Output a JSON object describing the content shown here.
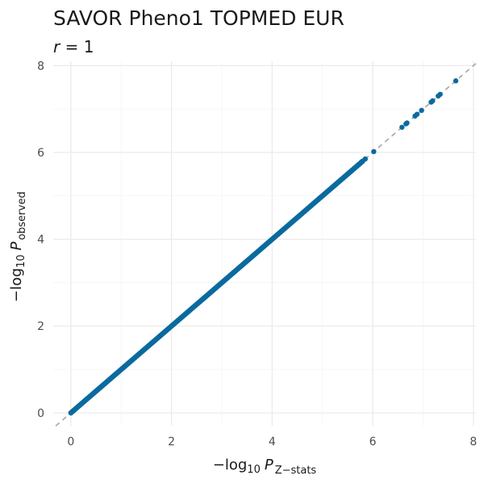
{
  "chart_data": {
    "type": "scatter",
    "title": "SAVOR Pheno1 TOPMED EUR",
    "subtitle": {
      "var": "r",
      "rest": " = 1"
    },
    "xlabel": {
      "prefix": "−log",
      "base": "10",
      "var": "P",
      "sub": "Z−stats"
    },
    "ylabel": {
      "prefix": "−log",
      "base": "10",
      "var": "P",
      "sub": "observed"
    },
    "xlim": [
      -0.35,
      8.05
    ],
    "ylim": [
      -0.3,
      8.1
    ],
    "xticks": [
      "0",
      "2",
      "4",
      "6",
      "8"
    ],
    "yticks": [
      "0",
      "2",
      "4",
      "6",
      "8"
    ],
    "grid": true,
    "reference_line": {
      "slope": 1,
      "intercept": 0,
      "style": "dashed",
      "color": "#a6a6a6"
    },
    "point_color": "#0a6a9e",
    "dense_range": [
      0,
      5.8
    ],
    "points": [
      [
        5.85,
        5.85
      ],
      [
        6.02,
        6.02
      ],
      [
        6.58,
        6.58
      ],
      [
        6.66,
        6.66
      ],
      [
        6.68,
        6.68
      ],
      [
        6.84,
        6.84
      ],
      [
        6.88,
        6.88
      ],
      [
        6.97,
        6.97
      ],
      [
        7.16,
        7.16
      ],
      [
        7.19,
        7.19
      ],
      [
        7.3,
        7.3
      ],
      [
        7.34,
        7.34
      ],
      [
        7.65,
        7.65
      ]
    ]
  }
}
